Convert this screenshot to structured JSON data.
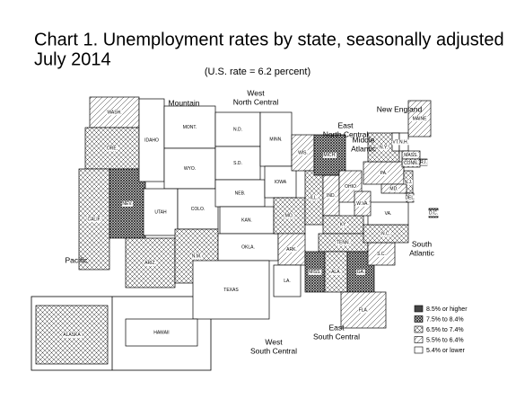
{
  "title": [
    "Chart 1. Unemployment rates by state, seasonally adjusted",
    "July 2014"
  ],
  "subtitle": "(U.S. rate = 6.2 percent)",
  "legend": [
    "8.5% or higher",
    "7.5% to 8.4%",
    "6.5% to 7.4%",
    "5.5% to 6.4%",
    "5.4% or lower"
  ],
  "regions": [
    {
      "lines": [
        "Mountain"
      ]
    },
    {
      "lines": [
        "West",
        "North Central"
      ]
    },
    {
      "lines": [
        "New England"
      ]
    },
    {
      "lines": [
        "East",
        "North Central"
      ]
    },
    {
      "lines": [
        "Middle",
        "Atlantic"
      ]
    },
    {
      "lines": [
        "South",
        "Atlantic"
      ]
    },
    {
      "lines": [
        "Pacific"
      ]
    },
    {
      "lines": [
        "West",
        "South Central"
      ]
    },
    {
      "lines": [
        "East",
        "South Central"
      ]
    }
  ],
  "states": [
    {
      "label": "WASH.",
      "range": "5.5% to 6.4%"
    },
    {
      "label": "ORE.",
      "range": "6.5% to 7.4%"
    },
    {
      "label": "CALIF.",
      "range": "6.5% to 7.4%"
    },
    {
      "label": "NEV.",
      "range": "7.5% to 8.4%"
    },
    {
      "label": "IDAHO",
      "range": "5.4% or lower"
    },
    {
      "label": "MONT.",
      "range": "5.4% or lower"
    },
    {
      "label": "WYO.",
      "range": "5.4% or lower"
    },
    {
      "label": "UTAH",
      "range": "5.4% or lower"
    },
    {
      "label": "COLO.",
      "range": "5.4% or lower"
    },
    {
      "label": "ARIZ.",
      "range": "6.5% to 7.4%"
    },
    {
      "label": "N.M.",
      "range": "6.5% to 7.4%"
    },
    {
      "label": "N.D.",
      "range": "5.4% or lower"
    },
    {
      "label": "S.D.",
      "range": "5.4% or lower"
    },
    {
      "label": "NEB.",
      "range": "5.4% or lower"
    },
    {
      "label": "KAN.",
      "range": "5.4% or lower"
    },
    {
      "label": "OKLA.",
      "range": "5.4% or lower"
    },
    {
      "label": "TEXAS",
      "range": "5.4% or lower"
    },
    {
      "label": "MINN.",
      "range": "5.4% or lower"
    },
    {
      "label": "IOWA",
      "range": "5.4% or lower"
    },
    {
      "label": "MO.",
      "range": "6.5% to 7.4%"
    },
    {
      "label": "ARK.",
      "range": "5.5% to 6.4%"
    },
    {
      "label": "LA.",
      "range": "5.4% or lower"
    },
    {
      "label": "WIS.",
      "range": "5.5% to 6.4%"
    },
    {
      "label": "ILL.",
      "range": "6.5% to 7.4%"
    },
    {
      "label": "IND.",
      "range": "5.5% to 6.4%"
    },
    {
      "label": "MICH.",
      "range": "7.5% to 8.4%"
    },
    {
      "label": "OHIO",
      "range": "5.5% to 6.4%"
    },
    {
      "label": "KY.",
      "range": "6.5% to 7.4%"
    },
    {
      "label": "TENN.",
      "range": "6.5% to 7.4%"
    },
    {
      "label": "MISS.",
      "range": "7.5% to 8.4%"
    },
    {
      "label": "ALA.",
      "range": "6.5% to 7.4%"
    },
    {
      "label": "GA.",
      "range": "7.5% to 8.4%"
    },
    {
      "label": "FLA.",
      "range": "5.5% to 6.4%"
    },
    {
      "label": "S.C.",
      "range": "5.5% to 6.4%"
    },
    {
      "label": "N.C.",
      "range": "6.5% to 7.4%"
    },
    {
      "label": "VA.",
      "range": "5.4% or lower"
    },
    {
      "label": "W.VA.",
      "range": "5.5% to 6.4%"
    },
    {
      "label": "PA.",
      "range": "5.5% to 6.4%"
    },
    {
      "label": "N.Y.",
      "range": "6.5% to 7.4%"
    },
    {
      "label": "MAINE",
      "range": "5.5% to 6.4%"
    },
    {
      "label": "VT.",
      "range": "5.4% or lower"
    },
    {
      "label": "N.H.",
      "range": "5.4% or lower"
    },
    {
      "label": "MASS.",
      "range": "5.5% to 6.4%"
    },
    {
      "label": "R.I.",
      "range": "7.5% to 8.4%"
    },
    {
      "label": "CONN.",
      "range": "6.5% to 7.4%"
    },
    {
      "label": "N.J.",
      "range": "6.5% to 7.4%"
    },
    {
      "label": "DEL.",
      "range": "5.5% to 6.4%"
    },
    {
      "label": "MD.",
      "range": "5.5% to 6.4%"
    },
    {
      "label": "D.C.",
      "range": "7.5% to 8.4%"
    },
    {
      "label": "ALASKA",
      "range": "6.5% to 7.4%"
    },
    {
      "label": "HAWAII",
      "range": "5.4% or lower"
    }
  ]
}
